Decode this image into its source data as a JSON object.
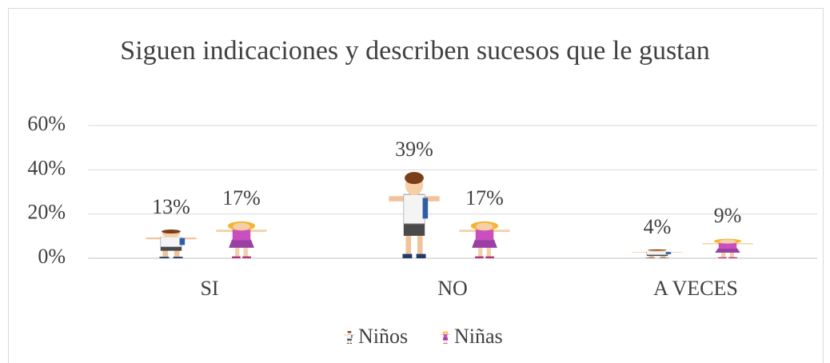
{
  "chart_data": {
    "type": "bar",
    "title": "Siguen indicaciones y describen sucesos que le gustan",
    "categories": [
      "SI",
      "NO",
      "A VECES"
    ],
    "series": [
      {
        "name": "Niños",
        "color": "#2e5fa6",
        "values": [
          13,
          39,
          4
        ],
        "value_labels": [
          "13%",
          "39%",
          "4%"
        ]
      },
      {
        "name": "Niñas",
        "color": "#c94fbf",
        "values": [
          17,
          17,
          9
        ],
        "value_labels": [
          "17%",
          "17%",
          "9%"
        ]
      }
    ],
    "ylim": [
      0,
      60
    ],
    "yticks": [
      {
        "value": 0,
        "label": "0%"
      },
      {
        "value": 20,
        "label": "20%"
      },
      {
        "value": 40,
        "label": "40%"
      },
      {
        "value": 60,
        "label": "60%"
      }
    ],
    "grid": true,
    "legend": "bottom"
  }
}
